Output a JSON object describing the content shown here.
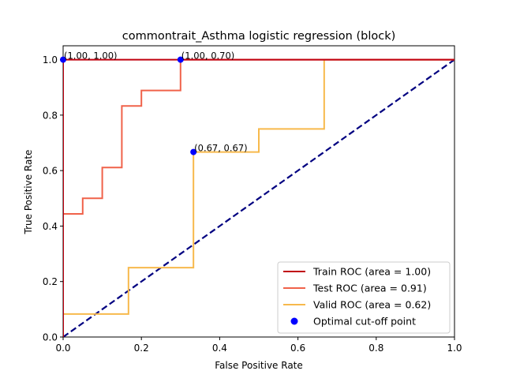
{
  "chart_data": {
    "type": "line",
    "title": "commontrait_Asthma logistic regression (block)",
    "xlabel": "False Positive Rate",
    "ylabel": "True Positive Rate",
    "xlim": [
      0,
      1
    ],
    "ylim": [
      0,
      1.05
    ],
    "xticks": [
      "0.0",
      "0.2",
      "0.4",
      "0.6",
      "0.8",
      "1.0"
    ],
    "yticks": [
      "0.0",
      "0.2",
      "0.4",
      "0.6",
      "0.8",
      "1.0"
    ],
    "grid": false,
    "legend_position": "lower-right",
    "series": [
      {
        "name": "Train ROC (area = 1.00)",
        "color": "#c0000f",
        "x": [
          0,
          0,
          1
        ],
        "y": [
          0,
          1,
          1
        ]
      },
      {
        "name": "Test ROC (area = 0.91)",
        "color": "#f0624a",
        "x": [
          0,
          0,
          0.05,
          0.05,
          0.1,
          0.1,
          0.15,
          0.15,
          0.2,
          0.2,
          0.3,
          0.3,
          1
        ],
        "y": [
          0,
          0.444,
          0.444,
          0.5,
          0.5,
          0.611,
          0.611,
          0.833,
          0.833,
          0.889,
          0.889,
          1,
          1
        ]
      },
      {
        "name": "Valid ROC (area = 0.62)",
        "color": "#f7b94c",
        "x": [
          0,
          0,
          0.167,
          0.167,
          0.333,
          0.333,
          0.5,
          0.5,
          0.667,
          0.667,
          1
        ],
        "y": [
          0,
          0.083,
          0.083,
          0.25,
          0.25,
          0.667,
          0.667,
          0.75,
          0.75,
          1,
          1
        ]
      }
    ],
    "reference_line": {
      "color": "#000080",
      "x": [
        0,
        1
      ],
      "y": [
        0,
        1
      ]
    },
    "optimal_points": {
      "name": "Optimal cut-off point",
      "color": "#0000ff",
      "points": [
        {
          "x": 0,
          "y": 1,
          "label": "(1.00, 1.00)"
        },
        {
          "x": 0.3,
          "y": 1,
          "label": "(1.00, 0.70)"
        },
        {
          "x": 0.333,
          "y": 0.667,
          "label": "(0.67, 0.67)"
        }
      ]
    }
  }
}
